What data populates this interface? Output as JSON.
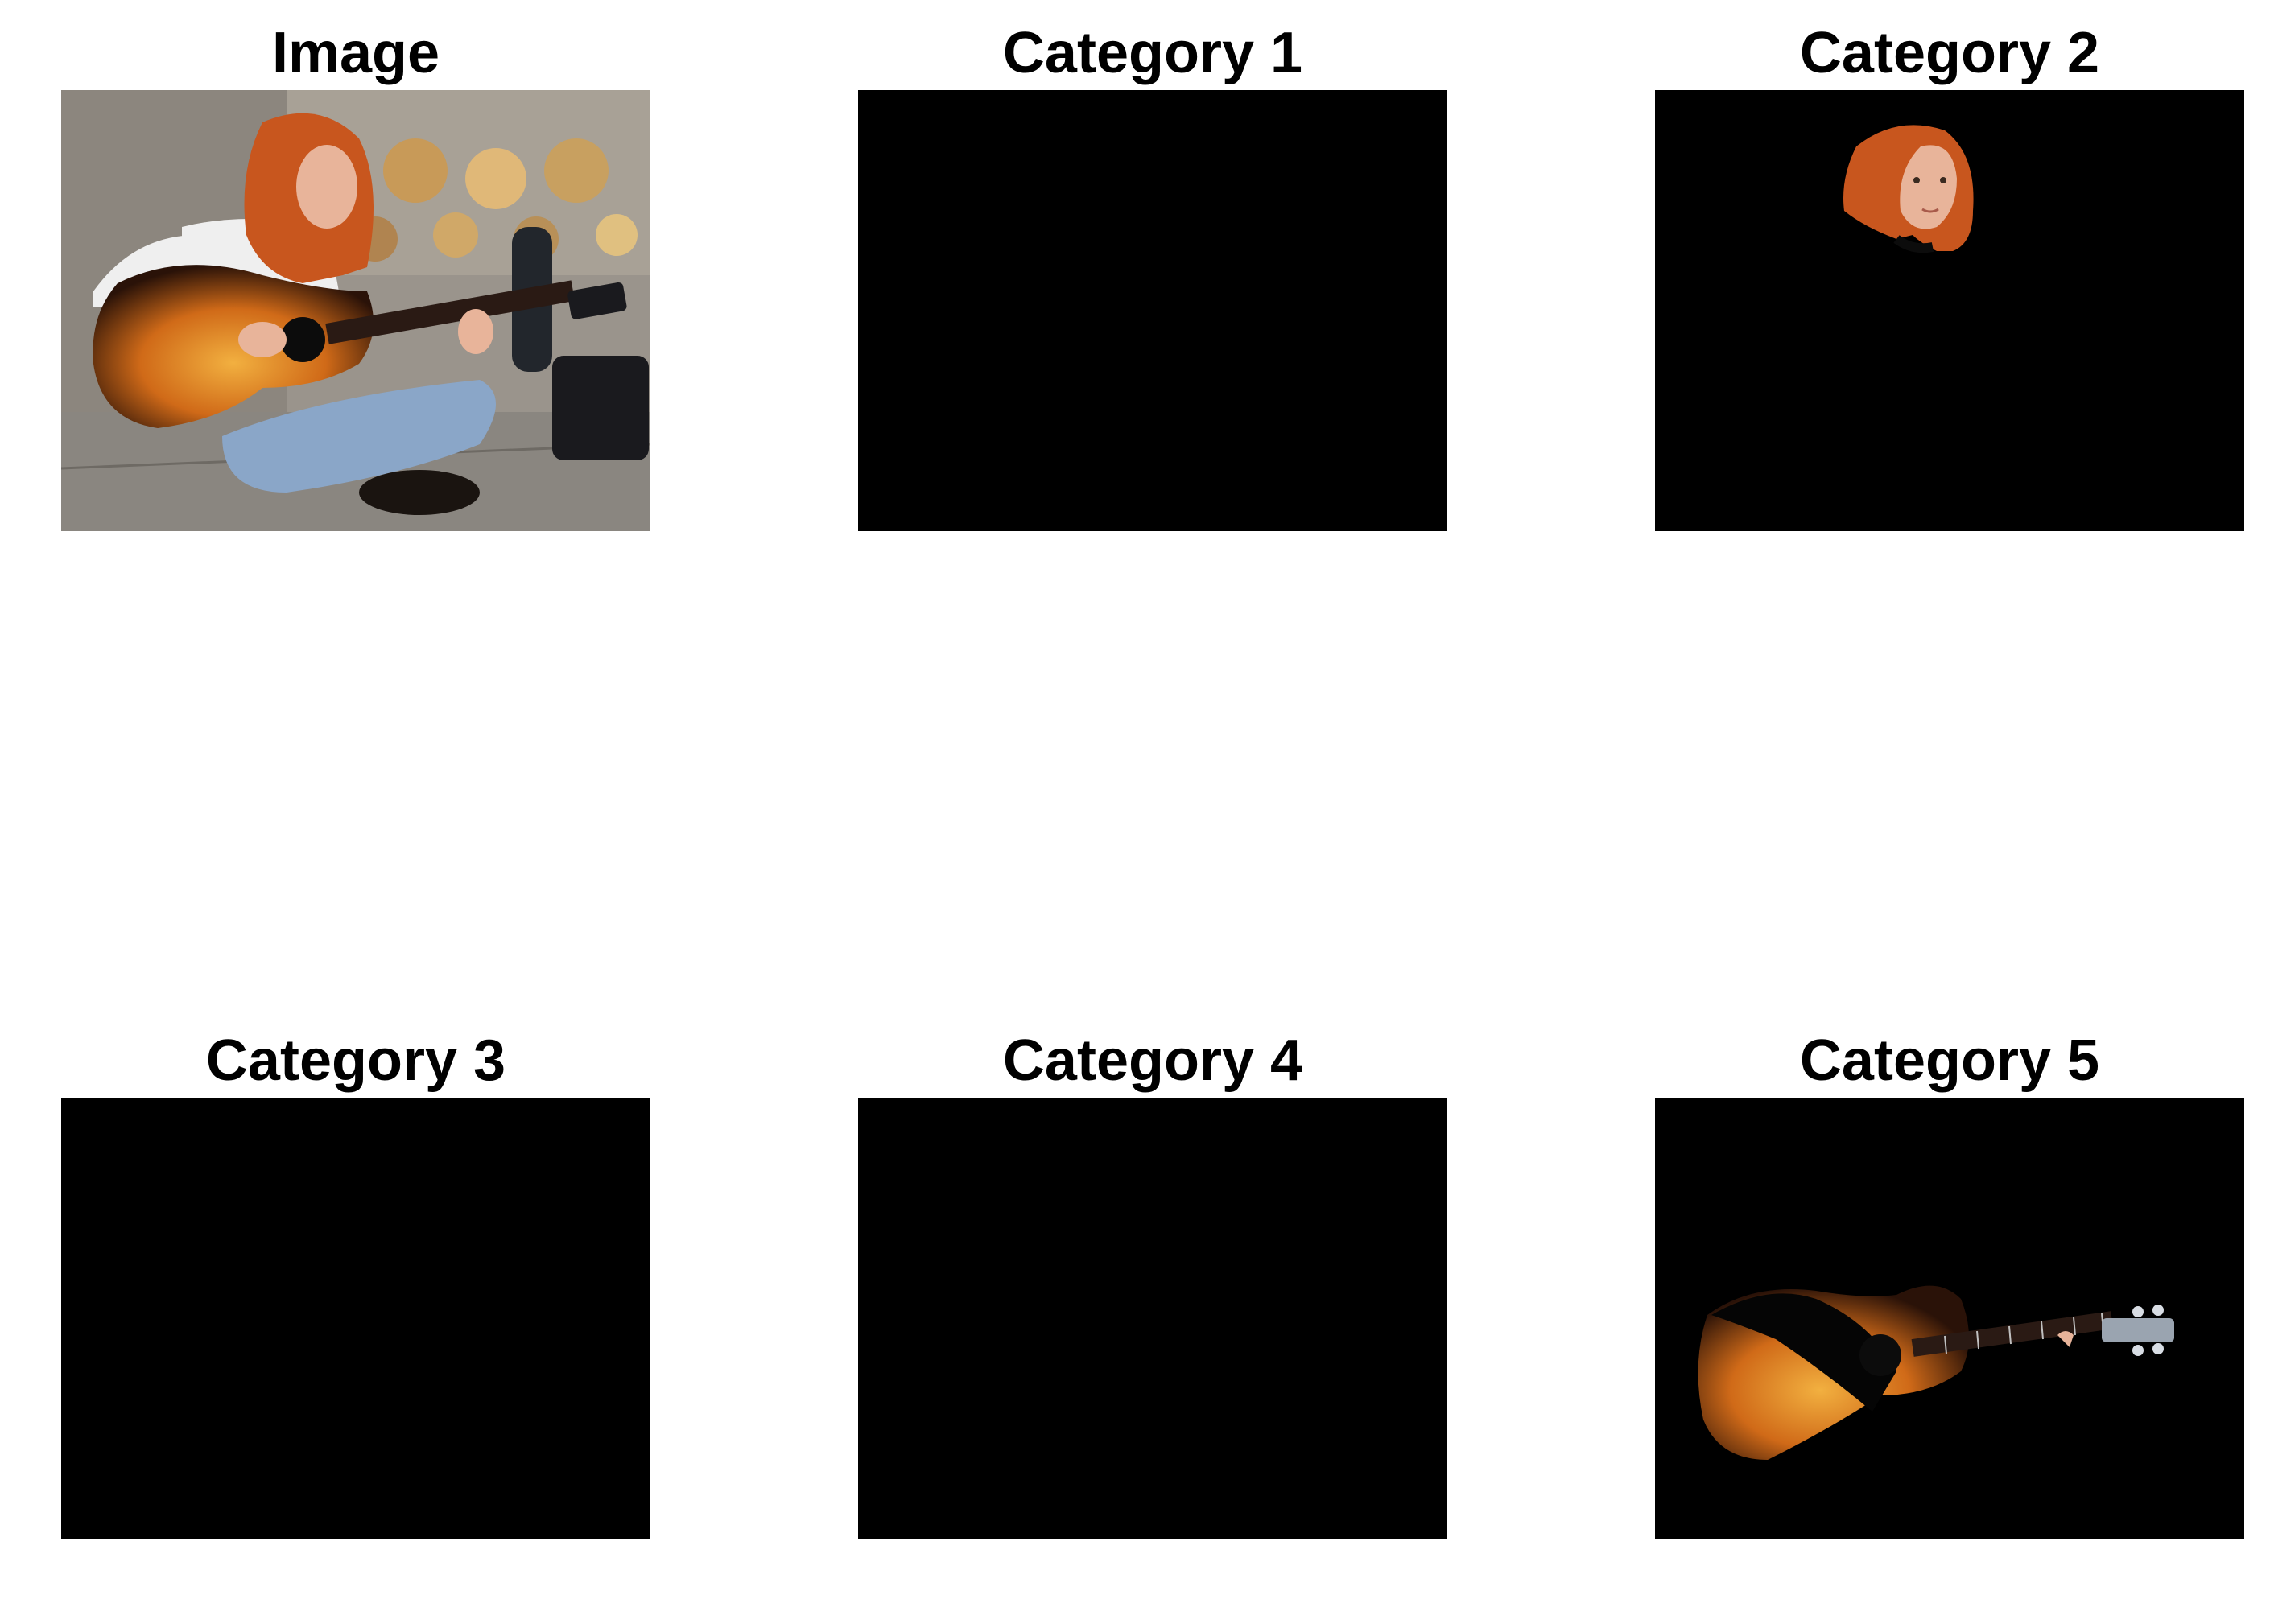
{
  "figure": {
    "background": "#ffffff",
    "panels": [
      {
        "title": "Image",
        "content": "original-photo"
      },
      {
        "title": "Category 1",
        "content": "empty-mask"
      },
      {
        "title": "Category 2",
        "content": "person-head-segment"
      },
      {
        "title": "Category 3",
        "content": "empty-mask"
      },
      {
        "title": "Category 4",
        "content": "empty-mask"
      },
      {
        "title": "Category 5",
        "content": "guitar-segment"
      }
    ]
  },
  "colors": {
    "mask_background": "#000000",
    "hair": "#c8561e",
    "skin": "#e8b49a",
    "guitar_sunburst_center": "#f0a030",
    "guitar_sunburst_edge": "#3a1a10",
    "wall": "#9a948c",
    "jeans": "#8aa6c8",
    "shirt": "#f0f0f0"
  }
}
